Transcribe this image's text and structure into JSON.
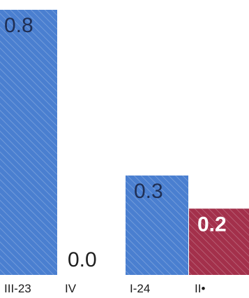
{
  "chart_data": {
    "type": "bar",
    "categories": [
      "III-23",
      "IV",
      "I-24",
      "II*"
    ],
    "values": [
      0.8,
      0.0,
      0.3,
      0.2
    ],
    "value_labels": [
      "0.8",
      "0.0",
      "0.3",
      "0.2"
    ],
    "category_labels": [
      "III-23",
      "IV",
      "I-24",
      "II•"
    ],
    "bar_colors": [
      "#4a7fd0",
      "#4a7fd0",
      "#4a7fd0",
      "#a3304b"
    ],
    "value_label_colors": [
      "#1f2f55",
      "#1f1f1f",
      "#1f2f55",
      "#ffffff"
    ],
    "title": "",
    "xlabel": "",
    "ylabel": "",
    "ylim": [
      0,
      0.8
    ],
    "grid": false,
    "legend": "none"
  }
}
